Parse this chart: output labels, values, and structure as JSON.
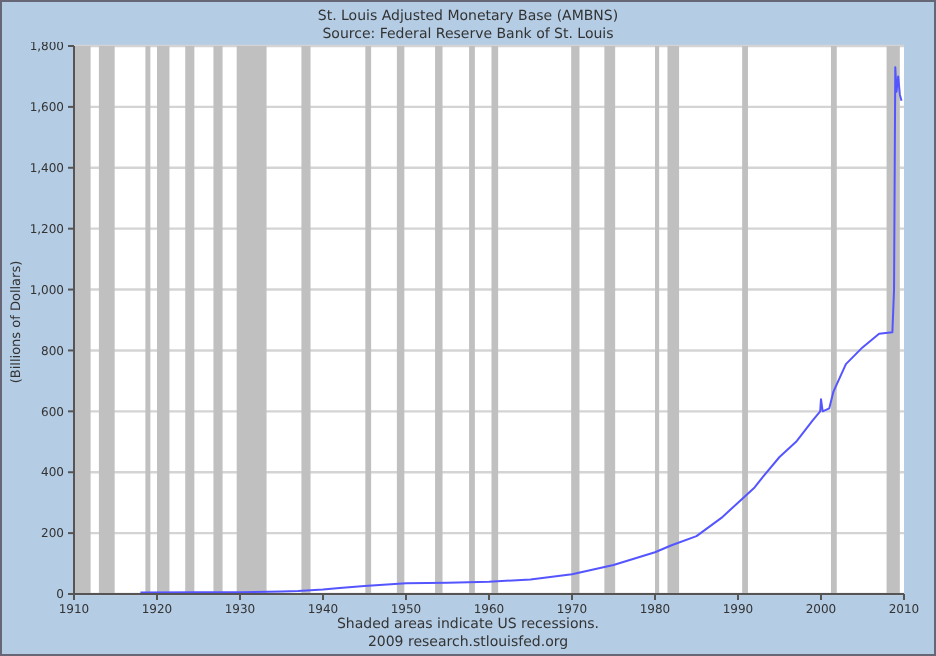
{
  "chart_data": {
    "type": "line",
    "title": "St. Louis Adjusted Monetary Base (AMBNS)",
    "subtitle": "Source: Federal Reserve Bank of St. Louis",
    "ylabel": "(Billions of Dollars)",
    "annotations": [
      "Shaded areas indicate US recessions.",
      "2009 research.stlouisfed.org"
    ],
    "x": [
      1918,
      1925,
      1930,
      1935,
      1937,
      1940,
      1942,
      1945,
      1950,
      1955,
      1960,
      1965,
      1970,
      1975,
      1980,
      1982,
      1985,
      1988,
      1990,
      1992,
      1993,
      1995,
      1997,
      1999,
      1999.9,
      2000.0,
      2000.2,
      2001,
      2001.5,
      2003,
      2005,
      2007,
      2008.6,
      2008.8,
      2008.95,
      2009.1,
      2009.3,
      2009.5,
      2009.7
    ],
    "series": [
      {
        "color": "#5555ff",
        "values": [
          5,
          6,
          6,
          8,
          10,
          15,
          20,
          26,
          35,
          37,
          40,
          48,
          65,
          95,
          137,
          160,
          190,
          250,
          300,
          350,
          385,
          450,
          500,
          570,
          600,
          640,
          600,
          610,
          665,
          755,
          810,
          855,
          860,
          1000,
          1730,
          1650,
          1700,
          1640,
          1620
        ]
      }
    ],
    "xlim": [
      1910,
      2010
    ],
    "xticks": [
      1910,
      1920,
      1930,
      1940,
      1950,
      1960,
      1970,
      1980,
      1990,
      2000,
      2010
    ],
    "ylim": [
      0,
      1800
    ],
    "yticks": [
      0,
      200,
      400,
      600,
      800,
      {
        "value": 1000,
        "label": "1,000"
      },
      {
        "value": 1200,
        "label": "1,200"
      },
      {
        "value": 1400,
        "label": "1,400"
      },
      {
        "value": 1600,
        "label": "1,600"
      },
      {
        "value": 1800,
        "label": "1,800"
      }
    ],
    "grid": "y",
    "legend": false,
    "bands": [
      {
        "axis": "x",
        "from": 1910,
        "to": 1912,
        "color": "#c0c0c0"
      },
      {
        "axis": "x",
        "from": 1913,
        "to": 1914.9,
        "color": "#c0c0c0"
      },
      {
        "axis": "x",
        "from": 1918.6,
        "to": 1919.2,
        "color": "#c0c0c0"
      },
      {
        "axis": "x",
        "from": 1920,
        "to": 1921.5,
        "color": "#c0c0c0"
      },
      {
        "axis": "x",
        "from": 1923.4,
        "to": 1924.5,
        "color": "#c0c0c0"
      },
      {
        "axis": "x",
        "from": 1926.8,
        "to": 1927.9,
        "color": "#c0c0c0"
      },
      {
        "axis": "x",
        "from": 1929.6,
        "to": 1933.2,
        "color": "#c0c0c0"
      },
      {
        "axis": "x",
        "from": 1937.4,
        "to": 1938.5,
        "color": "#c0c0c0"
      },
      {
        "axis": "x",
        "from": 1945.1,
        "to": 1945.8,
        "color": "#c0c0c0"
      },
      {
        "axis": "x",
        "from": 1948.9,
        "to": 1949.8,
        "color": "#c0c0c0"
      },
      {
        "axis": "x",
        "from": 1953.5,
        "to": 1954.4,
        "color": "#c0c0c0"
      },
      {
        "axis": "x",
        "from": 1957.6,
        "to": 1958.3,
        "color": "#c0c0c0"
      },
      {
        "axis": "x",
        "from": 1960.3,
        "to": 1961.1,
        "color": "#c0c0c0"
      },
      {
        "axis": "x",
        "from": 1969.9,
        "to": 1970.9,
        "color": "#c0c0c0"
      },
      {
        "axis": "x",
        "from": 1973.9,
        "to": 1975.2,
        "color": "#c0c0c0"
      },
      {
        "axis": "x",
        "from": 1980,
        "to": 1980.5,
        "color": "#c0c0c0"
      },
      {
        "axis": "x",
        "from": 1981.5,
        "to": 1982.9,
        "color": "#c0c0c0"
      },
      {
        "axis": "x",
        "from": 1990.5,
        "to": 1991.2,
        "color": "#c0c0c0"
      },
      {
        "axis": "x",
        "from": 2001.2,
        "to": 2001.9,
        "color": "#c0c0c0"
      },
      {
        "axis": "x",
        "from": 2007.9,
        "to": 2009.5,
        "color": "#c0c0c0"
      }
    ]
  }
}
